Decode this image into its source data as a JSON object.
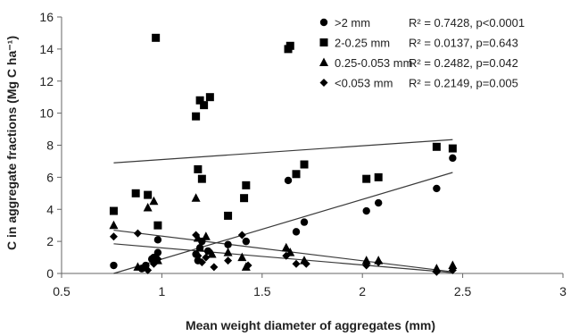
{
  "chart_data": {
    "type": "scatter",
    "xlabel": "Mean weight diameter of aggregates (mm)",
    "ylabel": "C in aggregate fractions (Mg C ha⁻¹)",
    "xlim": [
      0.5,
      3
    ],
    "ylim": [
      0,
      16
    ],
    "xticks": [
      0.5,
      1,
      1.5,
      2,
      2.5,
      3
    ],
    "xtick_labels": [
      "0.5",
      "1",
      "1.5",
      "2",
      "2.5",
      "3"
    ],
    "yticks": [
      0,
      2,
      4,
      6,
      8,
      10,
      12,
      14,
      16
    ],
    "ytick_labels": [
      "0",
      "2",
      "4",
      "6",
      "8",
      "10",
      "12",
      "14",
      "16"
    ],
    "grid": false,
    "legend_position": "top-right",
    "series": [
      {
        "name": ">2 mm",
        "stats": "R² = 0.7428, p<0.0001",
        "marker": "circle",
        "x": [
          0.76,
          0.9,
          0.92,
          0.95,
          0.96,
          0.98,
          0.98,
          1.17,
          1.18,
          1.19,
          1.2,
          1.23,
          1.33,
          1.42,
          1.63,
          1.67,
          1.71,
          2.02,
          2.08,
          2.37,
          2.45
        ],
        "y": [
          0.5,
          0.3,
          0.5,
          0.9,
          1.0,
          1.3,
          2.1,
          1.2,
          0.8,
          1.6,
          2.0,
          1.4,
          1.8,
          2.0,
          5.8,
          2.6,
          3.2,
          3.9,
          4.4,
          5.3,
          7.2
        ],
        "trend": [
          [
            0.76,
            0.0
          ],
          [
            2.45,
            6.3
          ]
        ]
      },
      {
        "name": "2-0.25 mm",
        "stats": "R² = 0.0137, p=0.643",
        "marker": "square",
        "x": [
          0.76,
          0.87,
          0.93,
          0.97,
          0.98,
          1.17,
          1.18,
          1.19,
          1.2,
          1.21,
          1.24,
          1.33,
          1.42,
          1.41,
          1.63,
          1.64,
          1.67,
          1.71,
          2.02,
          2.08,
          2.37,
          2.45
        ],
        "y": [
          3.9,
          5.0,
          4.9,
          14.7,
          3.0,
          9.8,
          6.5,
          10.8,
          5.9,
          10.5,
          11.0,
          3.6,
          5.5,
          4.7,
          14.0,
          14.2,
          6.2,
          6.8,
          5.9,
          6.0,
          7.9,
          7.8
        ],
        "trend": [
          [
            0.76,
            6.9
          ],
          [
            2.45,
            8.35
          ]
        ]
      },
      {
        "name": "0.25-0.053 mm",
        "stats": "R² = 0.2482, p=0.042",
        "marker": "triangle",
        "x": [
          0.76,
          0.88,
          0.93,
          0.96,
          0.98,
          1.17,
          1.18,
          1.19,
          1.22,
          1.25,
          1.33,
          1.4,
          1.42,
          1.62,
          1.64,
          1.71,
          2.02,
          2.08,
          2.37,
          2.45
        ],
        "y": [
          3.0,
          0.4,
          4.1,
          4.5,
          0.8,
          4.7,
          2.2,
          1.6,
          2.3,
          1.2,
          1.3,
          1.0,
          0.4,
          1.6,
          1.3,
          0.8,
          0.8,
          0.8,
          0.3,
          0.5
        ],
        "trend": [
          [
            0.76,
            2.7
          ],
          [
            2.45,
            0.1
          ]
        ]
      },
      {
        "name": "<0.053 mm",
        "stats": "R² = 0.2149, p=0.005",
        "marker": "diamond",
        "x": [
          0.76,
          0.88,
          0.93,
          0.96,
          0.98,
          1.17,
          1.18,
          1.2,
          1.22,
          1.26,
          1.33,
          1.4,
          1.43,
          1.62,
          1.67,
          1.72,
          2.02,
          2.08,
          2.37,
          2.45
        ],
        "y": [
          2.3,
          2.5,
          0.2,
          0.6,
          0.9,
          2.4,
          1.1,
          0.7,
          1.0,
          0.4,
          0.8,
          2.4,
          0.5,
          1.1,
          0.6,
          0.6,
          0.5,
          0.7,
          0.1,
          0.2
        ],
        "trend": [
          [
            0.76,
            1.85
          ],
          [
            2.45,
            0.05
          ]
        ]
      }
    ]
  }
}
